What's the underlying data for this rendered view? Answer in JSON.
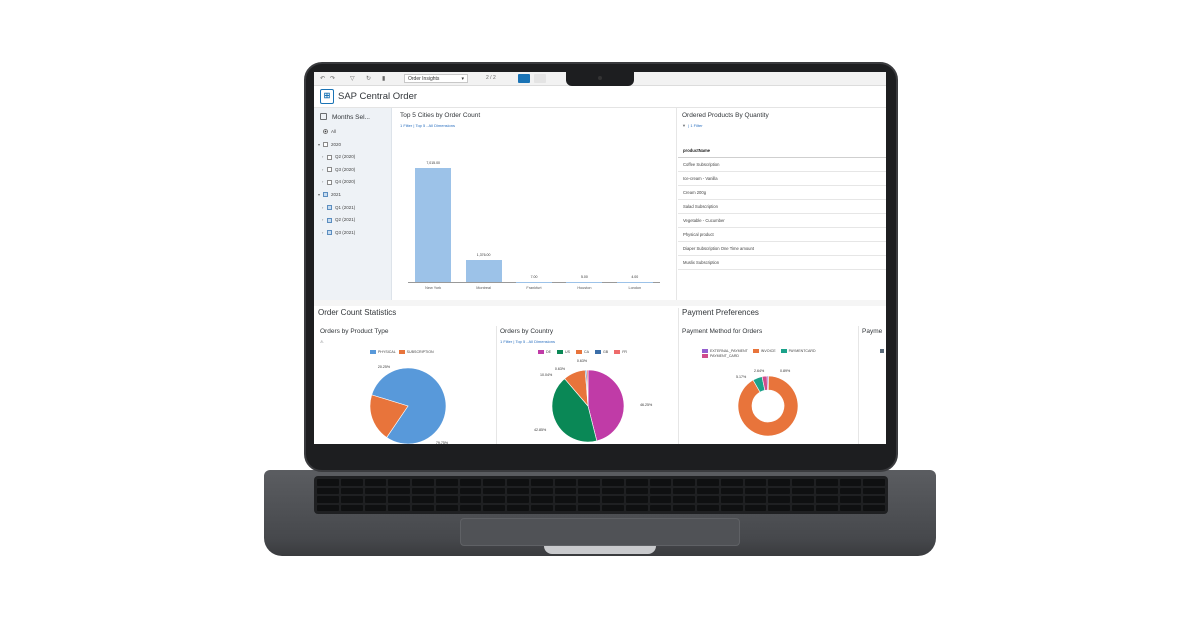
{
  "toolbar": {
    "story_select": "Order Insights",
    "page_indicator": "2 / 2"
  },
  "app": {
    "title": "SAP Central Order"
  },
  "filter": {
    "title": "Months Sel...",
    "items": [
      {
        "label": "All",
        "kind": "radio"
      },
      {
        "label": "2020",
        "kind": "year",
        "checked": false
      },
      {
        "label": "Q2 (2020)",
        "kind": "quarter",
        "checked": false
      },
      {
        "label": "Q3 (2020)",
        "kind": "quarter",
        "checked": false
      },
      {
        "label": "Q4 (2020)",
        "kind": "quarter",
        "checked": false
      },
      {
        "label": "2021",
        "kind": "year",
        "checked": true
      },
      {
        "label": "Q1 (2021)",
        "kind": "quarter",
        "checked": true
      },
      {
        "label": "Q2 (2021)",
        "kind": "quarter",
        "checked": true
      },
      {
        "label": "Q3 (2021)",
        "kind": "quarter",
        "checked": true
      }
    ]
  },
  "top_cities": {
    "title": "Top 5 Cities by Order Count",
    "subtitle_filter": "1 Filter",
    "subtitle_rank": "Top 5 - All Dimensions"
  },
  "ordered_products": {
    "title": "Ordered Products By Quantity",
    "subtitle_filter": "1 Filter",
    "column_header": "productName",
    "rows": [
      "Coffee Subscription",
      "Ice-cream - Vanilla",
      "Cream 200g",
      "Salad Subscription",
      "Vegetable - Cucumber",
      "Physical product",
      "Diaper Subscription One Time amount",
      "Muslix Subscription"
    ]
  },
  "order_count_statistics": {
    "title": "Order Count Statistics",
    "product_type_card": {
      "title": "Orders by Product Type"
    },
    "country_card": {
      "title": "Orders by Country",
      "subtitle_filter": "1 Filter",
      "subtitle_rank": "Top 5 - All Dimensions"
    }
  },
  "payment_preferences": {
    "title": "Payment Preferences",
    "method_card": {
      "title": "Payment Method for Orders"
    },
    "cut_card": {
      "title": "Payme"
    }
  },
  "colors": {
    "accent": "#1a73b5",
    "bar": "#9cc2e8",
    "physical": "#5899da",
    "subscription": "#e8743b",
    "de": "#c03ba7",
    "us": "#0a8856",
    "ca": "#e8743b",
    "gb": "#3b6ea8",
    "fr": "#ee6b6b",
    "external_payment": "#945ecf",
    "invoice": "#e8743b",
    "paymentcard": "#1ba28a",
    "payment_card": "#d04b8c"
  },
  "chart_data": [
    {
      "type": "bar",
      "title": "Top 5 Cities by Order Count",
      "categories": [
        "New York",
        "Montreal",
        "Frankfurt",
        "Houston",
        "London"
      ],
      "values": [
        7015,
        1376,
        7,
        5,
        4
      ],
      "data_labels": [
        "7,015.00",
        "1,376.00",
        "7.00",
        "5.00",
        "4.00"
      ],
      "ylim": [
        0,
        7500
      ]
    },
    {
      "type": "pie",
      "title": "Orders by Product Type",
      "series": [
        {
          "name": "PHYSICAL",
          "value": 79.75
        },
        {
          "name": "SUBSCRIPTION",
          "value": 20.25
        }
      ],
      "data_labels": [
        "20.25%",
        "79.75%"
      ],
      "legend": "top"
    },
    {
      "type": "pie",
      "title": "Orders by Country",
      "series": [
        {
          "name": "DE",
          "value": 46.25
        },
        {
          "name": "US",
          "value": 42.85
        },
        {
          "name": "CA",
          "value": 10.04
        },
        {
          "name": "GB",
          "value": 0.63
        },
        {
          "name": "FR",
          "value": 0.63
        }
      ],
      "data_labels": [
        "46.25%",
        "42.85%",
        "10.04%",
        "0.63%",
        "0.63%"
      ],
      "legend": "top"
    },
    {
      "type": "pie",
      "title": "Payment Method for Orders",
      "donut": true,
      "series": [
        {
          "name": "EXTERNAL_PAYMENT",
          "value": 0.89
        },
        {
          "name": "INVOICE",
          "value": 92.12
        },
        {
          "name": "PAYMENTCARD",
          "value": 5.17
        },
        {
          "name": "PAYMENT_CARD",
          "value": 2.64
        }
      ],
      "data_labels": [
        "0.89%",
        "5.17%",
        "2.64%"
      ],
      "legend": "top"
    }
  ]
}
